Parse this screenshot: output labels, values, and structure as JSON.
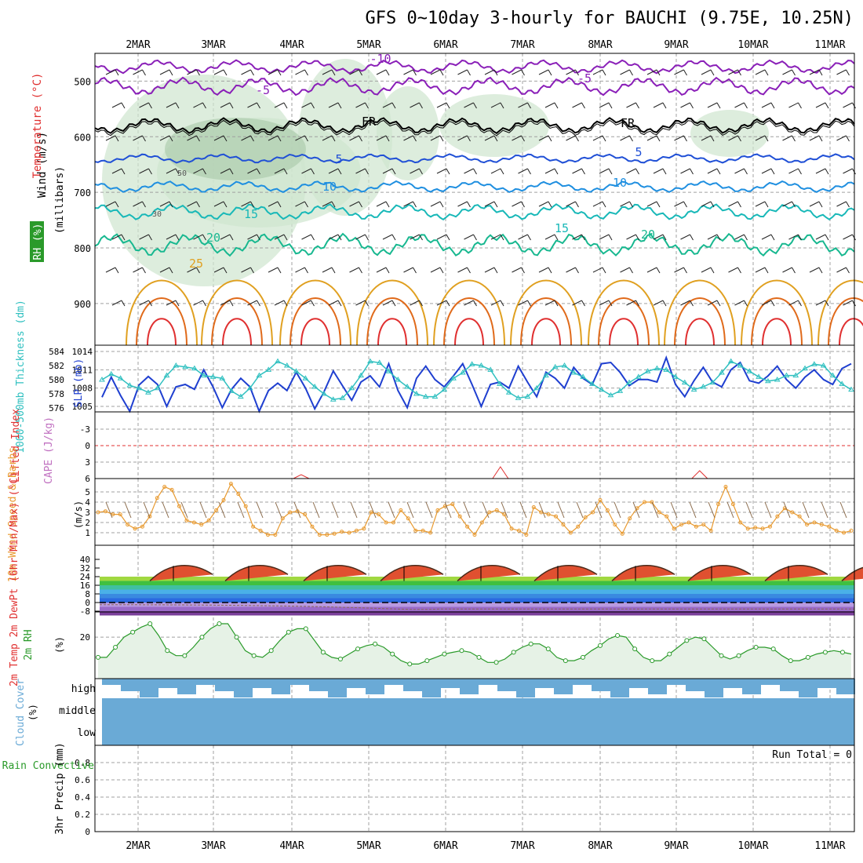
{
  "title": "GFS 0~10day 3-hourly for BAUCHI (9.75E, 10.25N)",
  "dates": [
    "2MAR",
    "3MAR",
    "4MAR",
    "5MAR",
    "6MAR",
    "7MAR",
    "8MAR",
    "9MAR",
    "10MAR",
    "11MAR"
  ],
  "colors": {
    "purple": "#8a1fb8",
    "black": "#000000",
    "blue": "#1f4fd6",
    "lightblue": "#1f8fe0",
    "cyan": "#18b8b8",
    "teal": "#18b890",
    "orange": "#e0a020",
    "darkorange": "#e06a1a",
    "red": "#e03030",
    "rhfill": "#cfe6cf",
    "slp": "#1f3fd0",
    "thick": "#30c0c0",
    "wind": "#e89a30",
    "barb": "#8a6a4a",
    "rh2m": "#2a9a2a",
    "cloud": "#6aaad6",
    "grid": "#a0a0a0"
  },
  "chart_data": [
    {
      "panel": "upper-air",
      "type": "contour",
      "ylabel_wind": "Wind (m/s)",
      "ylabel_temp": "Temperature (°C)",
      "ylabel_rh": "RH (%)",
      "ylabel_units": "(millibars)",
      "yticks": [
        500,
        600,
        700,
        800,
        900
      ],
      "contour_labels": [
        "-10",
        "-5",
        "-5",
        "FR",
        "FR",
        "5",
        "5",
        "10",
        "10",
        "15",
        "15",
        "20",
        "20",
        "25"
      ],
      "rh_labels": [
        "50",
        "30"
      ]
    },
    {
      "panel": "slp-thickness",
      "type": "line",
      "ylabel_left": "1000-500mb Thickness (dm)",
      "ylabel_right": "SLP (mb)",
      "yticks_left": [
        576,
        578,
        580,
        582,
        584
      ],
      "yticks_right": [
        1005,
        1008,
        1011,
        1014
      ],
      "series": [
        {
          "values": [
            1006.5,
            1009.8,
            1006.8,
            1004.2,
            1008.5,
            1009.9,
            1008.6,
            1005.0,
            1008.2,
            1008.6,
            1007.8,
            1011.0,
            1008.2,
            1004.8,
            1007.8,
            1009.6,
            1008.2,
            1004.2,
            1007.6,
            1008.8,
            1007.6,
            1010.6,
            1008.0,
            1004.6,
            1007.4,
            1010.8,
            1008.4,
            1006.0,
            1009.0,
            1010.0,
            1008.2,
            1012.0,
            1007.6,
            1004.8,
            1009.6,
            1011.6,
            1009.4,
            1008.2,
            1010.0,
            1012.0,
            1008.6,
            1005.0,
            1008.6,
            1009.0,
            1008.0,
            1011.6,
            1009.0,
            1006.6,
            1010.6,
            1009.6,
            1008.0,
            1011.4,
            1009.6,
            1008.6,
            1012.0,
            1012.2,
            1010.6,
            1008.4,
            1009.4,
            1009.4,
            1009.0,
            1013.0,
            1008.6,
            1006.6,
            1009.2,
            1011.4,
            1009.0,
            1008.2,
            1011.0,
            1012.2,
            1009.2,
            1008.8,
            1010.0,
            1011.6,
            1009.4,
            1008.0,
            1009.8,
            1011.0,
            1009.4,
            1008.6,
            1011.2,
            1012.0
          ]
        },
        {
          "values": [
            580.0,
            580.8,
            580.2,
            579.2,
            578.8,
            578.2,
            578.8,
            580.6,
            582.0,
            581.8,
            581.6,
            580.6,
            580.4,
            580.2,
            578.4,
            577.6,
            578.8,
            580.6,
            581.4,
            582.6,
            582.0,
            581.2,
            580.2,
            579.0,
            578.0,
            577.2,
            577.4,
            578.8,
            580.6,
            582.6,
            582.4,
            581.2,
            580.0,
            579.0,
            578.0,
            577.6,
            577.6,
            578.6,
            580.2,
            581.0,
            582.2,
            582.0,
            581.4,
            579.4,
            578.2,
            577.4,
            577.6,
            578.8,
            580.6,
            581.8,
            582.0,
            581.0,
            580.4,
            579.4,
            578.6,
            577.8,
            578.4,
            579.6,
            580.4,
            581.2,
            581.6,
            581.4,
            580.4,
            579.6,
            578.6,
            579.0,
            579.6,
            581.0,
            582.6,
            582.0,
            581.2,
            580.4,
            579.8,
            580.0,
            580.6,
            580.6,
            581.6,
            582.2,
            582.0,
            580.6,
            579.4,
            578.6
          ]
        }
      ]
    },
    {
      "panel": "li-cape",
      "type": "line",
      "ylabel_left": "Lifted Index",
      "ylabel_right": "CAPE (J/kg)",
      "yticks": [
        -3,
        0,
        3,
        6
      ],
      "cape_peaks": [
        [
          11,
          1
        ],
        [
          22,
          3
        ],
        [
          33,
          2
        ]
      ]
    },
    {
      "panel": "wind10m",
      "type": "line",
      "ylabel": "10m Wind Speed & Barbs",
      "units": "(m/s)",
      "yticks": [
        1,
        2,
        3,
        4,
        5
      ],
      "series": [
        {
          "values": [
            3.0,
            3.1,
            2.8,
            2.8,
            1.8,
            1.4,
            1.6,
            2.6,
            4.4,
            5.5,
            5.2,
            3.6,
            2.2,
            2.0,
            1.8,
            2.2,
            3.2,
            4.2,
            5.8,
            4.8,
            3.6,
            1.6,
            1.2,
            0.8,
            0.8,
            2.4,
            3.0,
            3.1,
            2.8,
            1.6,
            0.8,
            0.8,
            0.9,
            1.1,
            1.0,
            1.2,
            1.4,
            3.0,
            2.8,
            2.0,
            2.0,
            3.2,
            2.4,
            1.2,
            1.2,
            1.0,
            3.2,
            3.6,
            3.8,
            2.6,
            1.6,
            0.8,
            2.0,
            3.0,
            3.2,
            2.8,
            1.4,
            1.2,
            0.8,
            3.5,
            3.0,
            2.8,
            2.6,
            1.8,
            1.0,
            1.6,
            2.5,
            3.0,
            4.2,
            3.2,
            1.8,
            0.9,
            2.4,
            3.4,
            4.0,
            4.0,
            3.0,
            2.6,
            1.4,
            1.8,
            2.0,
            1.6,
            1.8,
            1.2,
            3.8,
            5.5,
            3.8,
            2.0,
            1.4,
            1.5,
            1.4,
            1.6,
            2.6,
            3.4,
            3.0,
            2.6,
            1.8,
            2.0,
            1.8,
            1.6,
            1.2,
            1.0,
            1.2
          ]
        }
      ]
    },
    {
      "panel": "temp-dewpt",
      "type": "area",
      "ylabel": "2m Temp 2m DewPt (6hr Min/Max) (°C)",
      "yticks": [
        -8,
        0,
        8,
        16,
        24,
        32,
        40
      ]
    },
    {
      "panel": "rh2m",
      "type": "area",
      "ylabel": "2m RH",
      "units": "(%)",
      "yticks": [
        20
      ],
      "series": [
        {
          "values": [
            8,
            8,
            14,
            20,
            23,
            26,
            28,
            21,
            12,
            9,
            9,
            14,
            20,
            25,
            28,
            28,
            20,
            12,
            9,
            8,
            12,
            18,
            23,
            25,
            25,
            18,
            11,
            8,
            7,
            10,
            13,
            15,
            16,
            14,
            10,
            6,
            4,
            4,
            6,
            8,
            10,
            11,
            12,
            11,
            8,
            5,
            5,
            7,
            11,
            14,
            16,
            16,
            13,
            8,
            6,
            6,
            8,
            12,
            15,
            19,
            21,
            20,
            13,
            8,
            6,
            6,
            10,
            14,
            18,
            20,
            19,
            14,
            9,
            7,
            9,
            12,
            14,
            14,
            13,
            9,
            6,
            6,
            8,
            10,
            11,
            12,
            11,
            10
          ]
        }
      ]
    },
    {
      "panel": "cloud",
      "type": "bar",
      "ylabel": "Cloud Cover",
      "units": "(%)",
      "levels": [
        "high",
        "middle",
        "low"
      ]
    },
    {
      "panel": "precip",
      "type": "bar",
      "ylabel_left": "Total / Rain Convective",
      "ylabel": "3hr Precip (mm)",
      "yticks": [
        0,
        0.2,
        0.4,
        0.6,
        0.8
      ],
      "run_total": "Run Total = 0",
      "ylim": [
        0,
        1.0
      ]
    }
  ]
}
